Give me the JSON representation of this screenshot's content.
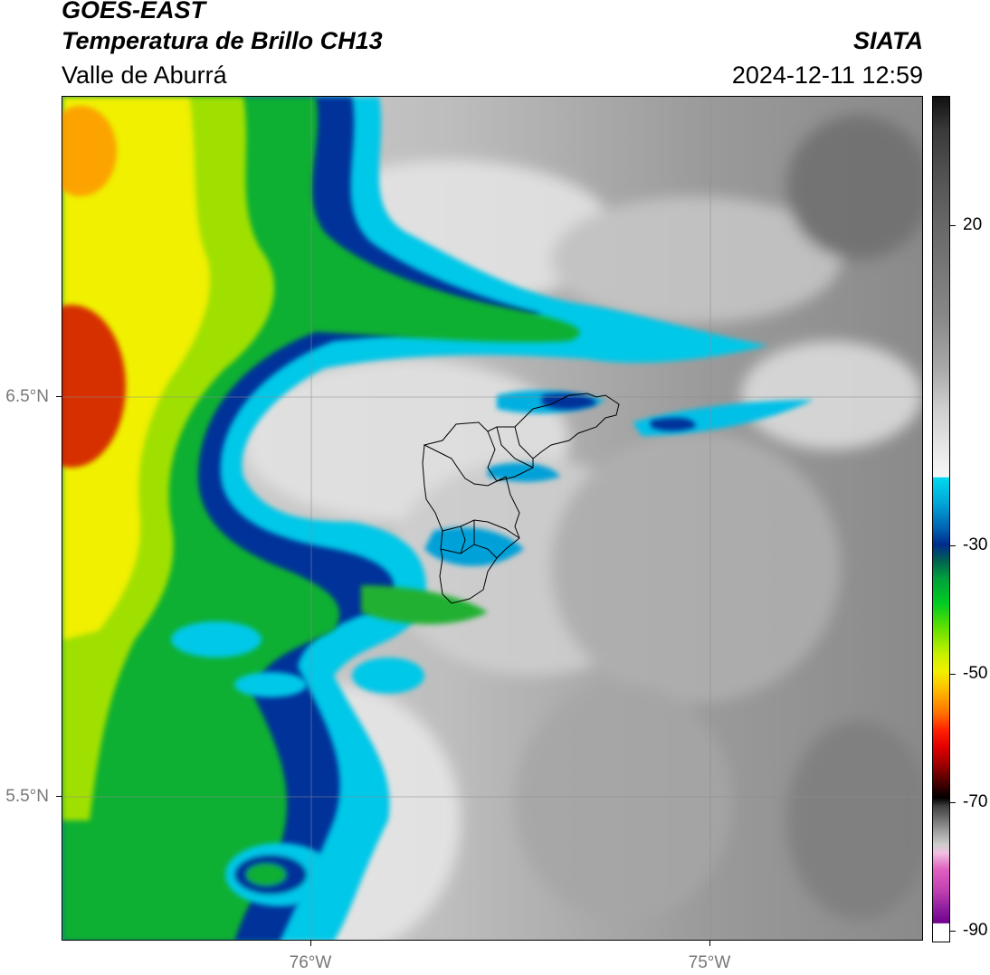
{
  "header": {
    "satellite": "GOES-EAST",
    "product": "Temperatura de Brillo CH13",
    "region": "Valle de Aburrá",
    "organization": "SIATA",
    "datetime": "2024-12-11 12:59"
  },
  "map": {
    "lat_labels": [
      "6.5°N",
      "5.5°N"
    ],
    "lon_labels": [
      "76°W",
      "75°W"
    ],
    "features": [
      "cold-cloud-band-west",
      "cloud-tongue-north",
      "valle-de-aburra-boundaries"
    ]
  },
  "colorbar": {
    "tick_labels": [
      "20",
      "-30",
      "-50",
      "-70",
      "-90"
    ],
    "colors": {
      "warm_gray": "#888888",
      "cyan": "#00d8f0",
      "blue": "#002c8c",
      "green": "#00cc22",
      "yellow": "#f0f000",
      "red": "#e00000",
      "magenta": "#c040b0"
    }
  }
}
